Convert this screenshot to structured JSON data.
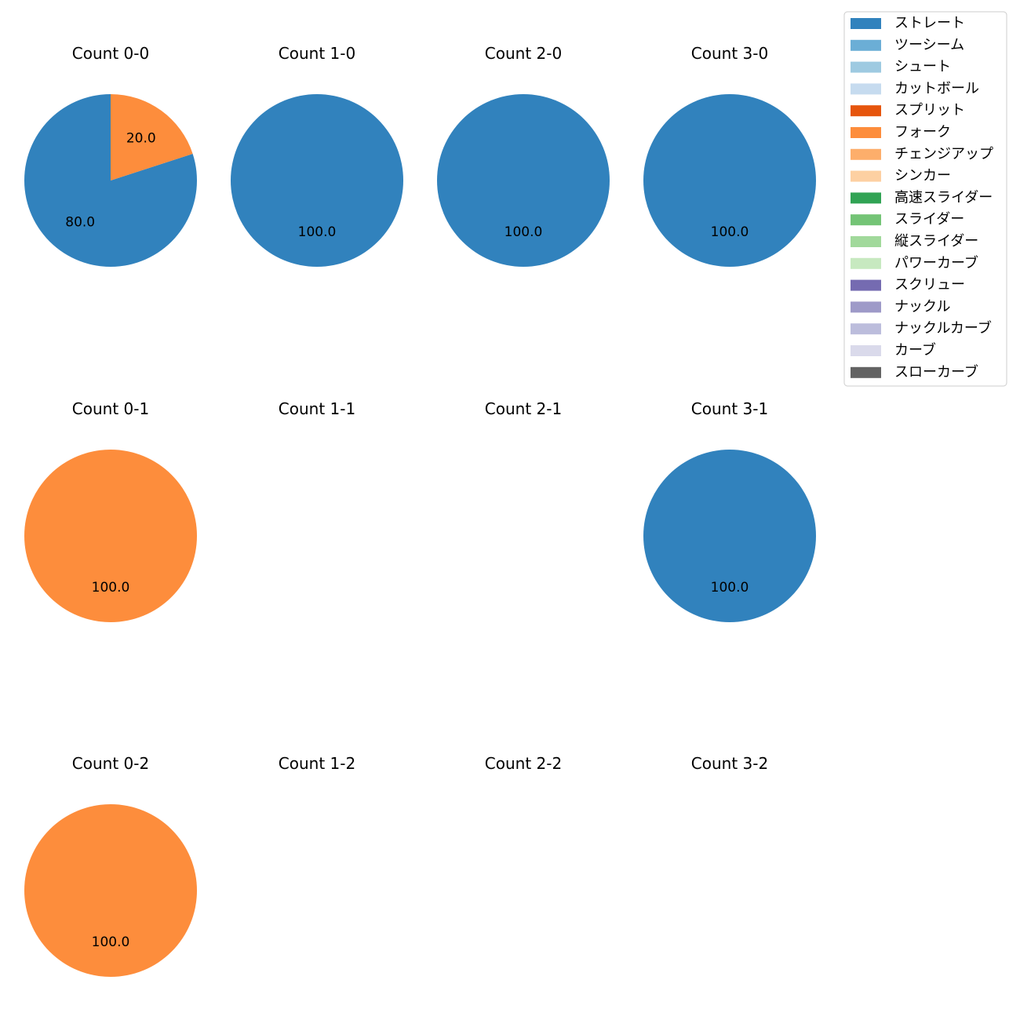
{
  "chart_data": {
    "type": "pie",
    "legend": {
      "placement": "top-right",
      "entries": [
        {
          "name": "ストレート",
          "color": "#3182bd"
        },
        {
          "name": "ツーシーム",
          "color": "#6baed6"
        },
        {
          "name": "シュート",
          "color": "#9ecae1"
        },
        {
          "name": "カットボール",
          "color": "#c6dbef"
        },
        {
          "name": "スプリット",
          "color": "#e6550d"
        },
        {
          "name": "フォーク",
          "color": "#fd8d3c"
        },
        {
          "name": "チェンジアップ",
          "color": "#fdae6b"
        },
        {
          "name": "シンカー",
          "color": "#fdd0a2"
        },
        {
          "name": "高速スライダー",
          "color": "#31a354"
        },
        {
          "name": "スライダー",
          "color": "#74c476"
        },
        {
          "name": "縦スライダー",
          "color": "#a1d99b"
        },
        {
          "name": "パワーカーブ",
          "color": "#c7e9c0"
        },
        {
          "name": "スクリュー",
          "color": "#756bb1"
        },
        {
          "name": "ナックル",
          "color": "#9e9ac8"
        },
        {
          "name": "ナックルカーブ",
          "color": "#bcbddc"
        },
        {
          "name": "カーブ",
          "color": "#dadaeb"
        },
        {
          "name": "スローカーブ",
          "color": "#636363"
        }
      ]
    },
    "panels": [
      {
        "title": "Count 0-0",
        "slices": [
          {
            "name": "ストレート",
            "value": 80.0,
            "label": "80.0"
          },
          {
            "name": "フォーク",
            "value": 20.0,
            "label": "20.0"
          }
        ]
      },
      {
        "title": "Count 1-0",
        "slices": [
          {
            "name": "ストレート",
            "value": 100.0,
            "label": "100.0"
          }
        ]
      },
      {
        "title": "Count 2-0",
        "slices": [
          {
            "name": "ストレート",
            "value": 100.0,
            "label": "100.0"
          }
        ]
      },
      {
        "title": "Count 3-0",
        "slices": [
          {
            "name": "ストレート",
            "value": 100.0,
            "label": "100.0"
          }
        ]
      },
      {
        "title": "Count 0-1",
        "slices": [
          {
            "name": "フォーク",
            "value": 100.0,
            "label": "100.0"
          }
        ]
      },
      {
        "title": "Count 1-1",
        "slices": []
      },
      {
        "title": "Count 2-1",
        "slices": []
      },
      {
        "title": "Count 3-1",
        "slices": [
          {
            "name": "ストレート",
            "value": 100.0,
            "label": "100.0"
          }
        ]
      },
      {
        "title": "Count 0-2",
        "slices": [
          {
            "name": "フォーク",
            "value": 100.0,
            "label": "100.0"
          }
        ]
      },
      {
        "title": "Count 1-2",
        "slices": []
      },
      {
        "title": "Count 2-2",
        "slices": []
      },
      {
        "title": "Count 3-2",
        "slices": []
      }
    ]
  }
}
